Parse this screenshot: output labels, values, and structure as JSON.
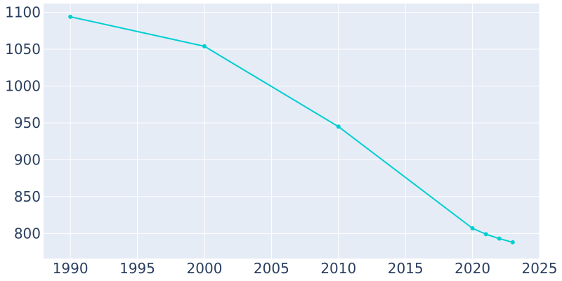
{
  "chart_data": {
    "type": "line",
    "title": "",
    "xlabel": "",
    "ylabel": "",
    "x": [
      1990,
      2000,
      2010,
      2020,
      2021,
      2022,
      2023
    ],
    "series": [
      {
        "values": [
          1094,
          1054,
          945,
          807,
          799,
          793,
          788
        ]
      }
    ],
    "xlim": [
      1988,
      2025
    ],
    "ylim": [
      766,
      1112
    ],
    "xticks": [
      1990,
      1995,
      2000,
      2005,
      2010,
      2015,
      2020,
      2025
    ],
    "yticks": [
      800,
      850,
      900,
      950,
      1000,
      1050,
      1100
    ],
    "grid": true,
    "colors": {
      "line": "#00ced1",
      "plot_bg": "#e5ecf6",
      "grid": "#ffffff",
      "text": "#2a3f5f"
    }
  }
}
